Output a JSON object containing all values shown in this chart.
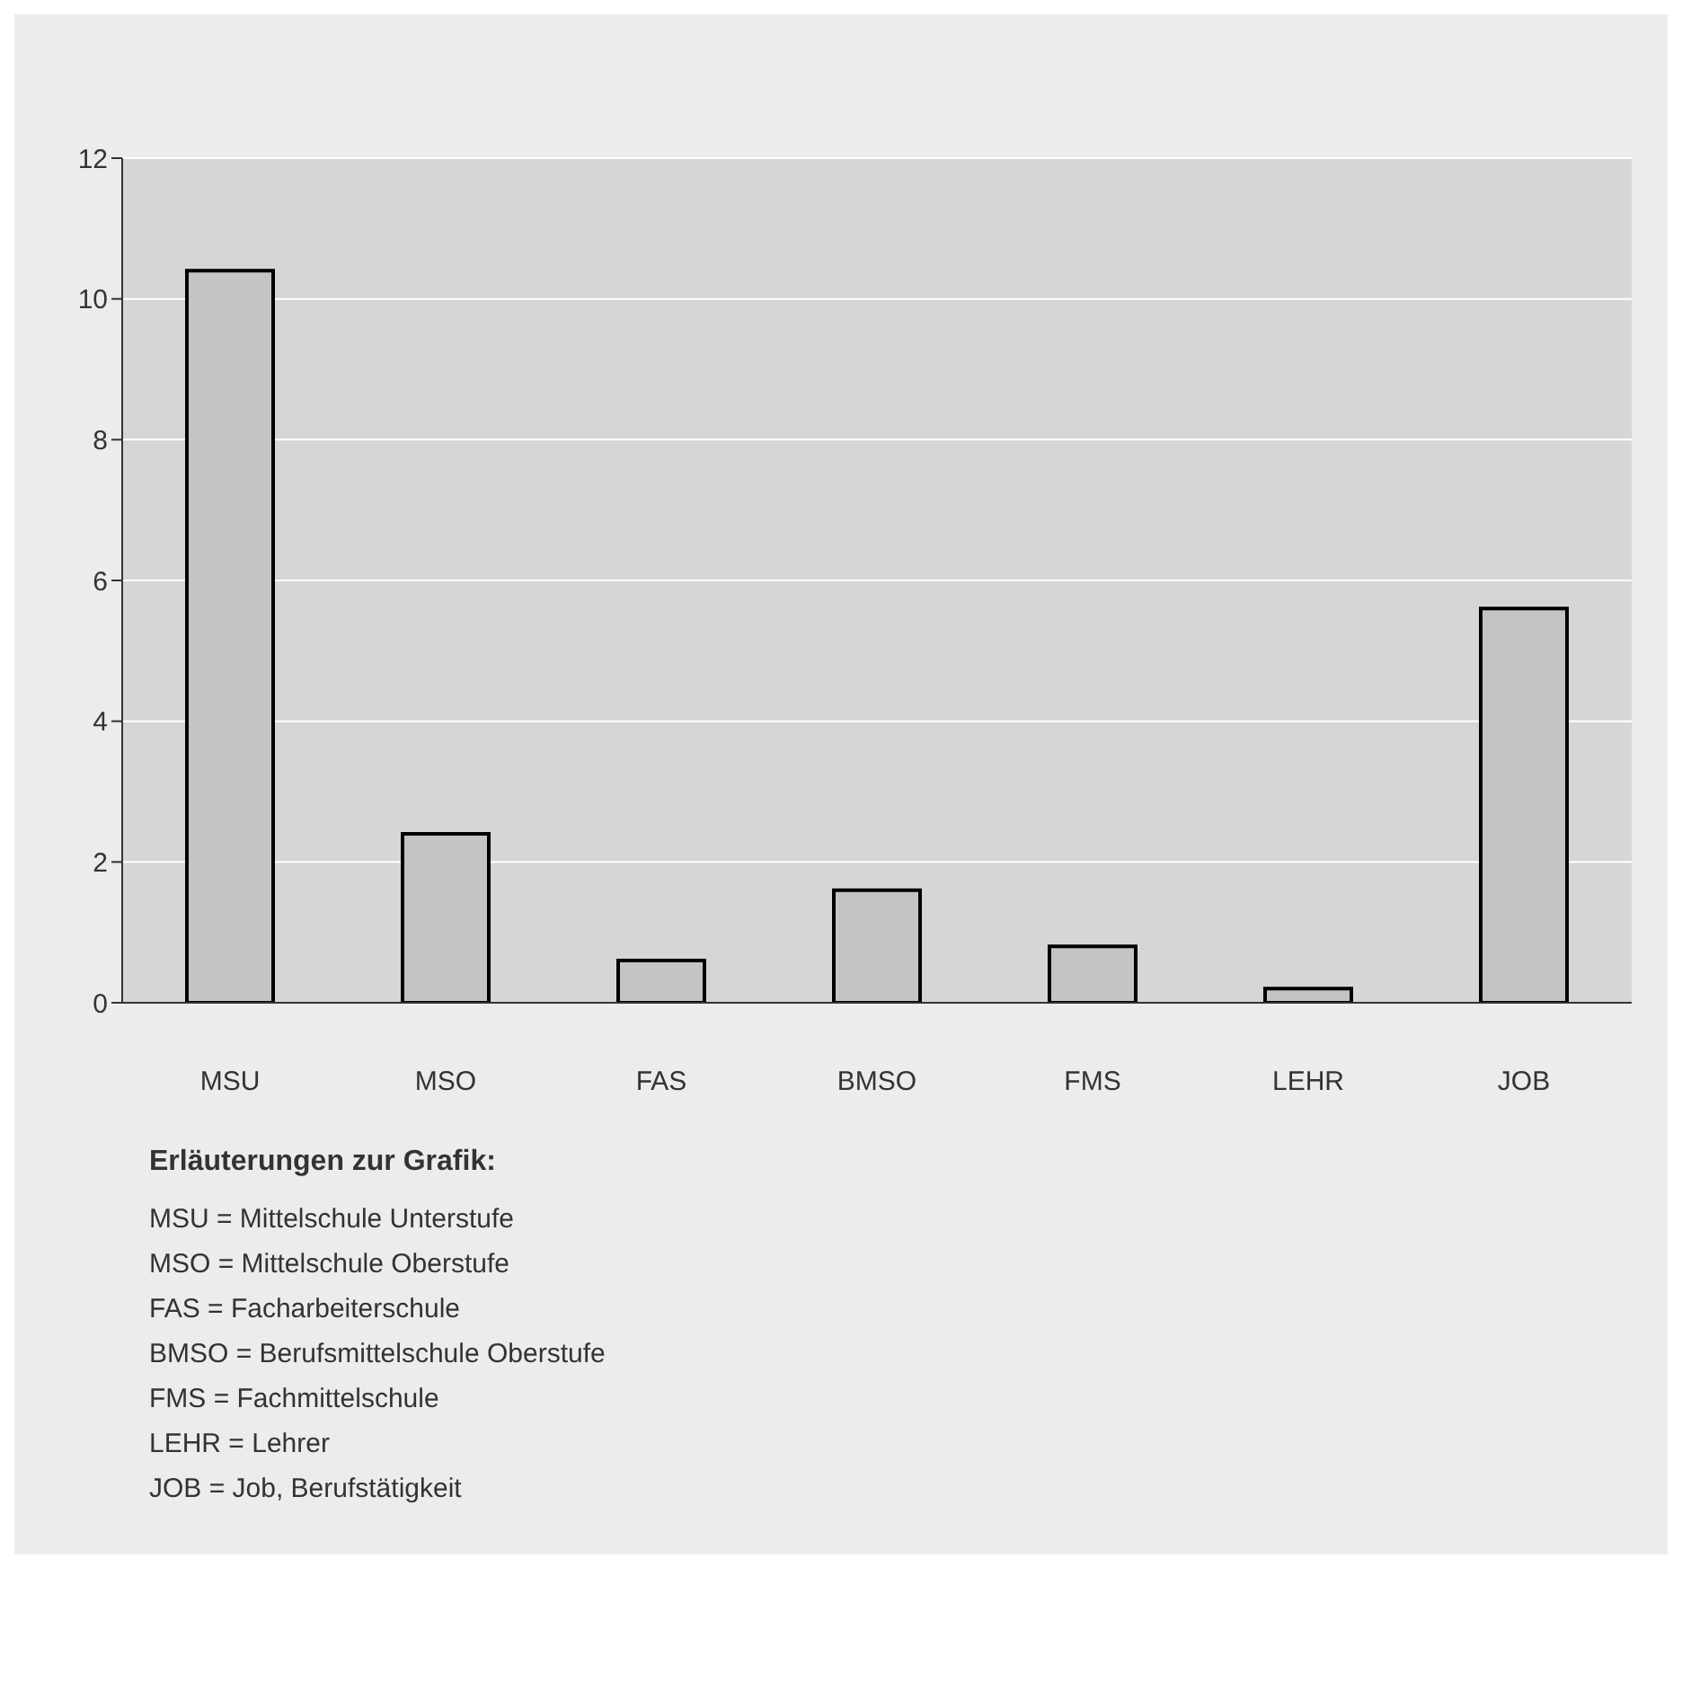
{
  "chart_data": {
    "type": "bar",
    "categories": [
      "MSU",
      "MSO",
      "FAS",
      "BMSO",
      "FMS",
      "LEHR",
      "JOB"
    ],
    "values": [
      10.4,
      2.4,
      0.6,
      1.6,
      0.8,
      0.2,
      5.6
    ],
    "color": "#c4c4c4",
    "ylim": [
      0,
      12
    ],
    "yticks": [
      0,
      2,
      4,
      6,
      8,
      10,
      12
    ],
    "grid": "y",
    "legend": false,
    "annotations": [
      "Erläuterungen zur Grafik:",
      "MSU = Mittelschule Unterstufe",
      "MSO = Mittelschule Oberstufe",
      "FAS = Facharbeiterschule",
      "BMSO = Berufsmittelschule Oberstufe",
      "FMS = Fachmittelschule",
      "LEHR = Lehrer",
      "JOB = Job, Berufstätigkeit"
    ]
  }
}
